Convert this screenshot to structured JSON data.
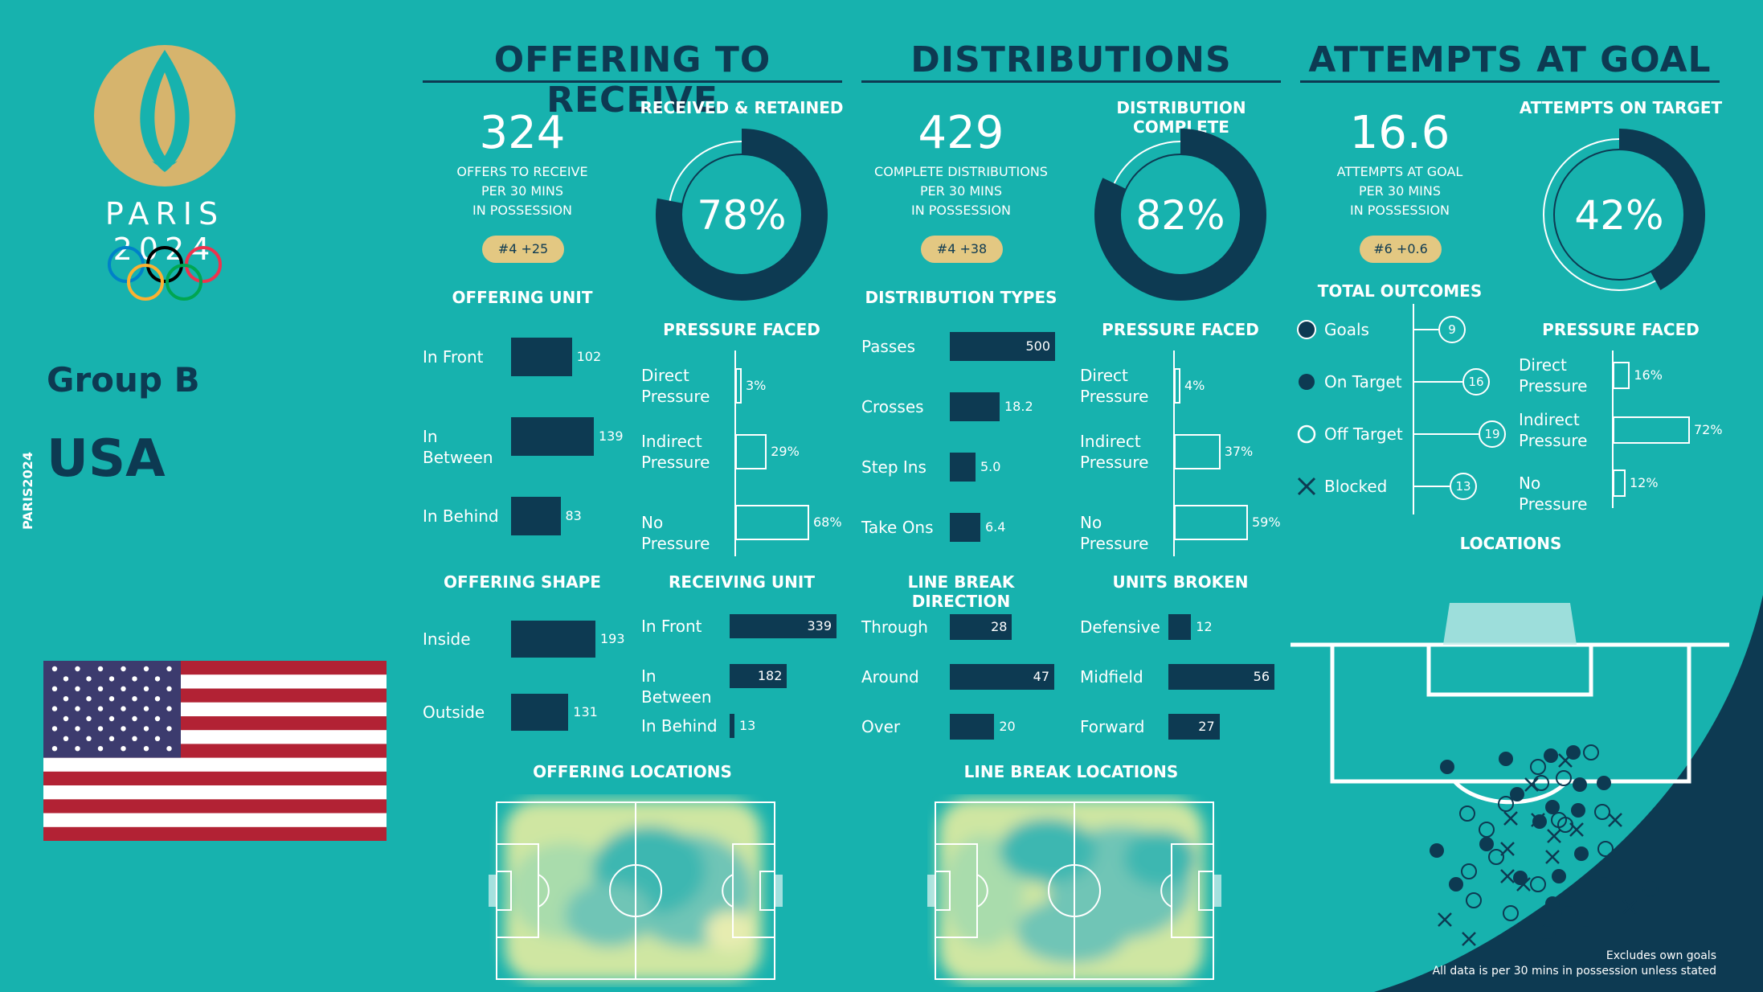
{
  "header": {
    "event": "PARIS 2024",
    "vertical_event": "PARIS2024",
    "group": "Group B",
    "team": "USA"
  },
  "colors": {
    "background": "#17b2ae",
    "navy": "#0d3a52",
    "gold": "#d6b46d",
    "pill": "#e3c882"
  },
  "footer": {
    "note1": "Excludes own goals",
    "note2": "All data is per 30 mins in possession unless stated"
  },
  "chart_data": [
    {
      "type": "kpi",
      "section": "OFFERING TO RECEIVE",
      "value": "324",
      "label_lines": [
        "OFFERS TO RECEIVE",
        "PER 30 MINS",
        "IN POSSESSION"
      ],
      "rank": "#4 +25"
    },
    {
      "type": "pie",
      "title": "RECEIVED & RETAINED",
      "value_pct": 78,
      "label": "78%"
    },
    {
      "type": "bar",
      "title": "OFFERING UNIT",
      "categories": [
        "In Front",
        "In Between",
        "In Behind"
      ],
      "values": [
        102,
        139,
        83
      ],
      "labels": [
        "102",
        "139",
        "83"
      ]
    },
    {
      "type": "bar",
      "title": "PRESSURE FACED",
      "categories": [
        "Direct Pressure",
        "Indirect Pressure",
        "No Pressure"
      ],
      "values": [
        3,
        29,
        68
      ],
      "labels": [
        "3%",
        "29%",
        "68%"
      ]
    },
    {
      "type": "bar",
      "title": "OFFERING SHAPE",
      "categories": [
        "Inside",
        "Outside"
      ],
      "values": [
        193,
        131
      ],
      "labels": [
        "193",
        "131"
      ]
    },
    {
      "type": "bar",
      "title": "RECEIVING UNIT",
      "categories": [
        "In Front",
        "In Between",
        "In Behind"
      ],
      "values": [
        339,
        182,
        13
      ],
      "labels": [
        "339",
        "182",
        "13"
      ]
    },
    {
      "type": "heatmap",
      "title": "OFFERING LOCATIONS"
    },
    {
      "type": "kpi",
      "section": "DISTRIBUTIONS",
      "value": "429",
      "label_lines": [
        "COMPLETE DISTRIBUTIONS",
        "PER 30 MINS",
        "IN POSSESSION"
      ],
      "rank": "#4 +38"
    },
    {
      "type": "pie",
      "title": "DISTRIBUTION COMPLETE",
      "value_pct": 82,
      "label": "82%"
    },
    {
      "type": "bar",
      "title": "DISTRIBUTION TYPES",
      "categories": [
        "Passes",
        "Crosses",
        "Step Ins",
        "Take Ons"
      ],
      "values": [
        500,
        18.2,
        5.0,
        6.4
      ],
      "labels": [
        "500",
        "18.2",
        "5.0",
        "6.4"
      ]
    },
    {
      "type": "bar",
      "title": "PRESSURE FACED",
      "categories": [
        "Direct Pressure",
        "Indirect Pressure",
        "No Pressure"
      ],
      "values": [
        4,
        37,
        59
      ],
      "labels": [
        "4%",
        "37%",
        "59%"
      ]
    },
    {
      "type": "bar",
      "title": "LINE BREAK DIRECTION",
      "categories": [
        "Through",
        "Around",
        "Over"
      ],
      "values": [
        28,
        47,
        20
      ],
      "labels": [
        "28",
        "47",
        "20"
      ]
    },
    {
      "type": "bar",
      "title": "UNITS BROKEN",
      "categories": [
        "Defensive",
        "Midfield",
        "Forward"
      ],
      "values": [
        12,
        56,
        27
      ],
      "labels": [
        "12",
        "56",
        "27"
      ]
    },
    {
      "type": "heatmap",
      "title": "LINE BREAK LOCATIONS"
    },
    {
      "type": "kpi",
      "section": "ATTEMPTS AT GOAL",
      "value": "16.6",
      "label_lines": [
        "ATTEMPTS AT GOAL",
        "PER 30 MINS",
        "IN POSSESSION"
      ],
      "rank": "#6 +0.6"
    },
    {
      "type": "pie",
      "title": "ATTEMPTS ON TARGET",
      "value_pct": 42,
      "label": "42%"
    },
    {
      "type": "table",
      "title": "TOTAL OUTCOMES",
      "categories": [
        "Goals",
        "On Target",
        "Off Target",
        "Blocked"
      ],
      "values": [
        9,
        16,
        19,
        13
      ]
    },
    {
      "type": "bar",
      "title": "PRESSURE FACED",
      "categories": [
        "Direct Pressure",
        "Indirect Pressure",
        "No Pressure"
      ],
      "values": [
        16,
        72,
        12
      ],
      "labels": [
        "16%",
        "72%",
        "12%"
      ]
    },
    {
      "type": "scatter",
      "title": "LOCATIONS"
    }
  ]
}
